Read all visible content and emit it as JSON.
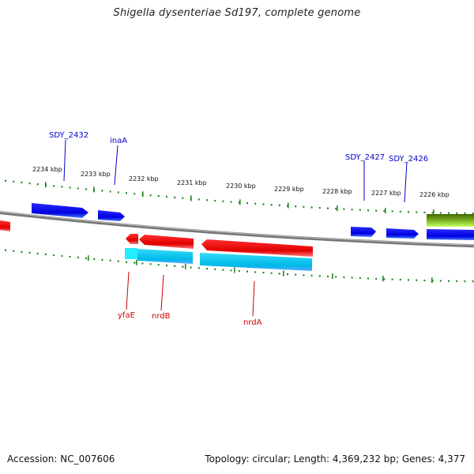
{
  "title": "Shigella dysenteriae Sd197, complete genome",
  "footer": {
    "accession": "Accession: NC_007606",
    "summary": "Topology: circular; Length: 4,369,232 bp; Genes: 4,377"
  },
  "ruler": {
    "ticks": [
      "2234 kbp",
      "2233 kbp",
      "2232 kbp",
      "2231 kbp",
      "2230 kbp",
      "2229 kbp",
      "2228 kbp",
      "2227 kbp",
      "2226 kbp"
    ]
  },
  "genes": {
    "forward": [
      {
        "name": "SDY_2432",
        "color": "#0000dd"
      },
      {
        "name": "inaA",
        "color": "#0000dd"
      },
      {
        "name": "SDY_2427",
        "color": "#0000dd"
      },
      {
        "name": "SDY_2426",
        "color": "#0000dd"
      }
    ],
    "reverse": [
      {
        "name": "yfaE",
        "color": "#dd0000"
      },
      {
        "name": "nrdB",
        "color": "#dd0000"
      },
      {
        "name": "nrdA",
        "color": "#dd0000"
      }
    ]
  },
  "colors": {
    "forward_gene": "#0000ee",
    "reverse_gene": "#ee0000",
    "feature_cyan": "#00ccee",
    "backbone": "#888888",
    "tick": "#228822",
    "extra_feature": "#88cc22"
  }
}
